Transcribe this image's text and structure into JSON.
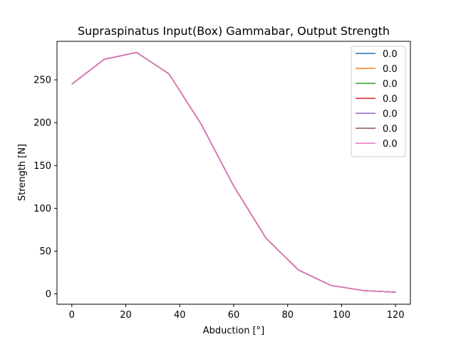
{
  "chart_data": {
    "type": "line",
    "title": "Supraspinatus Input(Box) Gammabar, Output Strength",
    "xlabel": "Abduction [°]",
    "ylabel": "Strength [N]",
    "xlim": [
      -5.5,
      125.5
    ],
    "ylim": [
      -12,
      295
    ],
    "xticks": [
      0,
      20,
      40,
      60,
      80,
      100,
      120
    ],
    "yticks": [
      0,
      50,
      100,
      150,
      200,
      250
    ],
    "x": [
      0,
      12,
      24,
      36,
      48,
      60,
      72,
      84,
      96,
      108,
      120
    ],
    "grid": false,
    "legend_position": "top-right",
    "series": [
      {
        "name": "0.0",
        "color": "#1f77b4",
        "values": [
          245,
          274,
          282,
          257,
          198,
          126,
          65,
          28,
          10,
          4,
          2
        ]
      },
      {
        "name": "0.0",
        "color": "#ff7f0e",
        "values": [
          245,
          274,
          282,
          257,
          198,
          126,
          65,
          28,
          10,
          4,
          2
        ]
      },
      {
        "name": "0.0",
        "color": "#2ca02c",
        "values": [
          245,
          274,
          282,
          257,
          198,
          126,
          65,
          28,
          10,
          4,
          2
        ]
      },
      {
        "name": "0.0",
        "color": "#d62728",
        "values": [
          245,
          274,
          282,
          257,
          198,
          126,
          65,
          28,
          10,
          4,
          2
        ]
      },
      {
        "name": "0.0",
        "color": "#9467bd",
        "values": [
          245,
          274,
          282,
          257,
          198,
          126,
          65,
          28,
          10,
          4,
          2
        ]
      },
      {
        "name": "0.0",
        "color": "#8c564b",
        "values": [
          245,
          274,
          282,
          257,
          198,
          126,
          65,
          28,
          10,
          4,
          2
        ]
      },
      {
        "name": "0.0",
        "color": "#e377c2",
        "values": [
          245,
          274,
          282,
          257,
          198,
          126,
          65,
          28,
          10,
          4,
          2
        ]
      }
    ]
  }
}
